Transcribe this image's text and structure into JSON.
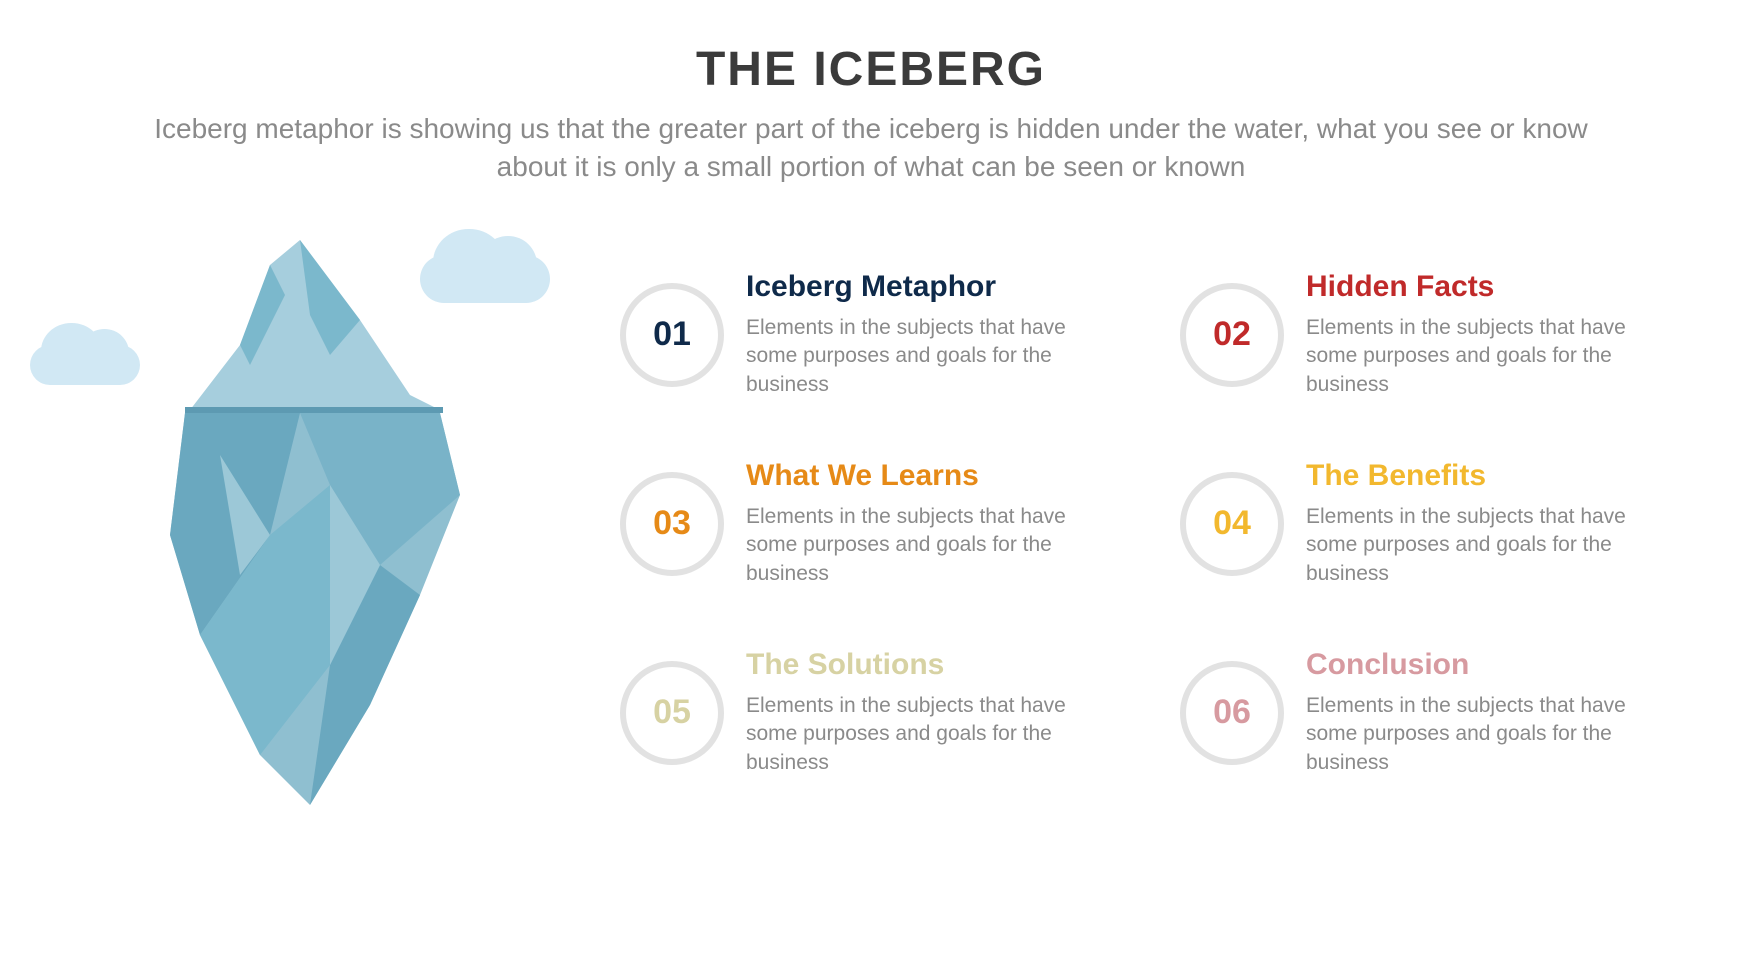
{
  "header": {
    "title": "THE ICEBERG",
    "title_fontsize": 48,
    "title_color": "#3b3b3b",
    "subtitle": "Iceberg metaphor is showing us that the greater part of the iceberg is hidden under the water, what you see or know about it is only a small portion of what can be seen or known",
    "subtitle_fontsize": 28,
    "subtitle_color": "#8a8a8a"
  },
  "infographic": {
    "type": "infographic",
    "background_color": "#ffffff",
    "iceberg": {
      "cloud_color": "#d1e8f4",
      "tip_color": "#e8f2f6",
      "upper_light": "#a6cedd",
      "upper_dark": "#7bb8cc",
      "waterline_color": "#5d9ab2",
      "lower_light": "#8fbfd0",
      "lower_dark": "#6aa8bf",
      "shadow_color": "#5b99b1"
    },
    "item_shared": {
      "circle_border_color": "#e2e2e2",
      "circle_border_width": 6,
      "circle_diameter": 104,
      "number_fontsize": 34,
      "title_fontsize": 30,
      "desc_fontsize": 21,
      "desc_color": "#8a8a8a",
      "desc_text": "Elements in the subjects that have some purposes and goals for the  business"
    },
    "items": [
      {
        "num": "01",
        "title": "Iceberg Metaphor",
        "color": "#0f2a4a"
      },
      {
        "num": "02",
        "title": "Hidden Facts",
        "color": "#c02a2a"
      },
      {
        "num": "03",
        "title": "What We Learns",
        "color": "#e68a17"
      },
      {
        "num": "04",
        "title": "The Benefits",
        "color": "#f2b82e"
      },
      {
        "num": "05",
        "title": "The Solutions",
        "color": "#d7d2a3"
      },
      {
        "num": "06",
        "title": "Conclusion",
        "color": "#d79aa0"
      }
    ]
  }
}
